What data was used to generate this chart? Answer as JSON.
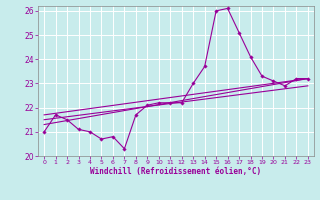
{
  "background_color": "#c8ecec",
  "grid_color": "#ffffff",
  "line_color": "#990099",
  "marker_color": "#990099",
  "xlabel": "Windchill (Refroidissement éolien,°C)",
  "xlabel_color": "#990099",
  "tick_color": "#990099",
  "spine_color": "#888888",
  "xlim": [
    -0.5,
    23.5
  ],
  "ylim": [
    20.0,
    26.2
  ],
  "yticks": [
    20,
    21,
    22,
    23,
    24,
    25,
    26
  ],
  "xticks": [
    0,
    1,
    2,
    3,
    4,
    5,
    6,
    7,
    8,
    9,
    10,
    11,
    12,
    13,
    14,
    15,
    16,
    17,
    18,
    19,
    20,
    21,
    22,
    23
  ],
  "series1_x": [
    0,
    1,
    2,
    3,
    4,
    5,
    6,
    7,
    8,
    9,
    10,
    11,
    12,
    13,
    14,
    15,
    16,
    17,
    18,
    19,
    20,
    21,
    22,
    23
  ],
  "series1_y": [
    21.0,
    21.7,
    21.5,
    21.1,
    21.0,
    20.7,
    20.8,
    20.3,
    21.7,
    22.1,
    22.2,
    22.2,
    22.2,
    23.0,
    23.7,
    26.0,
    26.1,
    25.1,
    24.1,
    23.3,
    23.1,
    22.9,
    23.2,
    23.2
  ],
  "series2_x": [
    0,
    23
  ],
  "series2_y": [
    21.3,
    23.2
  ],
  "series3_x": [
    0,
    23
  ],
  "series3_y": [
    21.5,
    22.9
  ],
  "series4_x": [
    0,
    23
  ],
  "series4_y": [
    21.7,
    23.2
  ]
}
